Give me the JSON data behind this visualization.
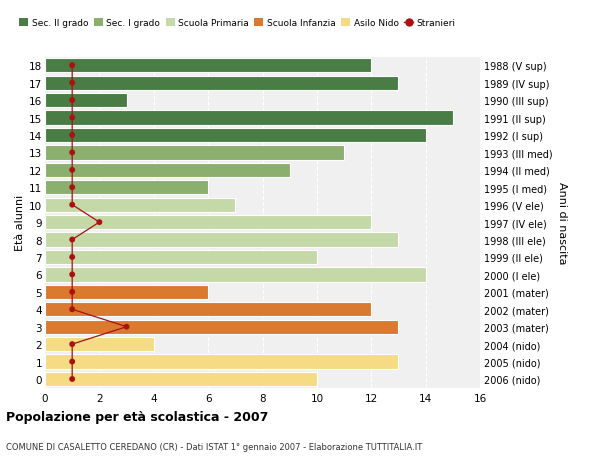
{
  "ages": [
    18,
    17,
    16,
    15,
    14,
    13,
    12,
    11,
    10,
    9,
    8,
    7,
    6,
    5,
    4,
    3,
    2,
    1,
    0
  ],
  "years": [
    "1988 (V sup)",
    "1989 (IV sup)",
    "1990 (III sup)",
    "1991 (II sup)",
    "1992 (I sup)",
    "1993 (III med)",
    "1994 (II med)",
    "1995 (I med)",
    "1996 (V ele)",
    "1997 (IV ele)",
    "1998 (III ele)",
    "1999 (II ele)",
    "2000 (I ele)",
    "2001 (mater)",
    "2002 (mater)",
    "2003 (mater)",
    "2004 (nido)",
    "2005 (nido)",
    "2006 (nido)"
  ],
  "bar_values": [
    12,
    13,
    3,
    15,
    14,
    11,
    9,
    6,
    7,
    12,
    13,
    10,
    14,
    6,
    12,
    13,
    4,
    13,
    10
  ],
  "bar_colors": [
    "#4a7c45",
    "#4a7c45",
    "#4a7c45",
    "#4a7c45",
    "#4a7c45",
    "#8aaf6e",
    "#8aaf6e",
    "#8aaf6e",
    "#c5d9a8",
    "#c5d9a8",
    "#c5d9a8",
    "#c5d9a8",
    "#c5d9a8",
    "#d97a2e",
    "#d97a2e",
    "#d97a2e",
    "#f5dc84",
    "#f5dc84",
    "#f5dc84"
  ],
  "stranieri_x": [
    1,
    1,
    1,
    1,
    1,
    1,
    1,
    1,
    1,
    2,
    1,
    1,
    1,
    1,
    1,
    3,
    1,
    1,
    1
  ],
  "title": "Popolazione per età scolastica - 2007",
  "subtitle": "COMUNE DI CASALETTO CEREDANO (CR) - Dati ISTAT 1° gennaio 2007 - Elaborazione TUTTITALIA.IT",
  "ylabel_left": "Età alunni",
  "ylabel_right": "Anni di nascita",
  "xlim": [
    0,
    16
  ],
  "legend_labels": [
    "Sec. II grado",
    "Sec. I grado",
    "Scuola Primaria",
    "Scuola Infanzia",
    "Asilo Nido",
    "Stranieri"
  ],
  "legend_colors": [
    "#4a7c45",
    "#8aaf6e",
    "#c5d9a8",
    "#d97a2e",
    "#f5dc84",
    "#aa1111"
  ],
  "color_stranieri": "#aa1111",
  "bg_color": "#ffffff",
  "bar_bg_color": "#eeeeee"
}
